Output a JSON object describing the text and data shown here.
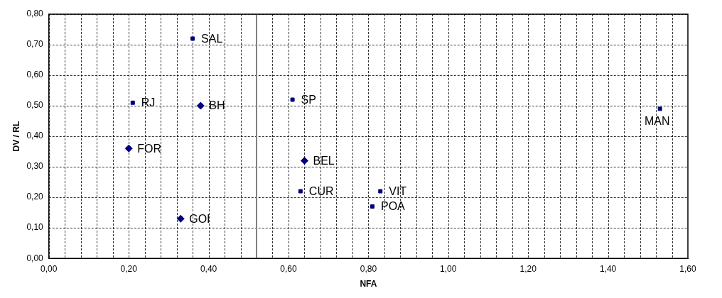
{
  "chart_data": {
    "type": "scatter",
    "xlabel": "NFA",
    "ylabel": "DV / RL",
    "series": [
      {
        "color": "#000080",
        "marker": "diamond",
        "x": [
          0.38,
          0.2,
          0.33,
          0.64
        ],
        "values": [
          0.5,
          0.36,
          0.13,
          0.32
        ]
      },
      {
        "color": "#000080",
        "marker": "square",
        "x": [
          0.36,
          0.21,
          0.61,
          0.63,
          0.81,
          0.83,
          1.53
        ],
        "values": [
          0.72,
          0.51,
          0.52,
          0.22,
          0.17,
          0.22,
          0.49
        ]
      }
    ],
    "annotations": [
      {
        "text": "SAL",
        "x": 0.36,
        "y": 0.72
      },
      {
        "text": "RJ",
        "x": 0.21,
        "y": 0.51
      },
      {
        "text": "BH",
        "x": 0.38,
        "y": 0.5
      },
      {
        "text": "SP",
        "x": 0.61,
        "y": 0.52
      },
      {
        "text": "FOR",
        "x": 0.2,
        "y": 0.36
      },
      {
        "text": "BEL",
        "x": 0.64,
        "y": 0.32
      },
      {
        "text": "CUR",
        "x": 0.63,
        "y": 0.22
      },
      {
        "text": "VIT",
        "x": 0.83,
        "y": 0.22
      },
      {
        "text": "POA",
        "x": 0.81,
        "y": 0.17
      },
      {
        "text": "GOI",
        "x": 0.33,
        "y": 0.13
      },
      {
        "text": "MAN",
        "x": 1.53,
        "y": 0.49
      }
    ],
    "ref_lines": [
      {
        "axis": "x",
        "value": 0.52,
        "color": "#808080"
      }
    ],
    "xlim": [
      0,
      1.6
    ],
    "xticks": [
      {
        "value": 0,
        "label": "0,00"
      },
      {
        "value": 0.2,
        "label": "0,20"
      },
      {
        "value": 0.4,
        "label": "0,40"
      },
      {
        "value": 0.6,
        "label": "0,60"
      },
      {
        "value": 0.8,
        "label": "0,80"
      },
      {
        "value": 1,
        "label": "1,00"
      },
      {
        "value": 1.2,
        "label": "1,20"
      },
      {
        "value": 1.4,
        "label": "1,40"
      },
      {
        "value": 1.6,
        "label": "1,60"
      }
    ],
    "ylim": [
      0,
      0.8
    ],
    "yticks": [
      {
        "value": 0,
        "label": "0,00"
      },
      {
        "value": 0.1,
        "label": "0,10"
      },
      {
        "value": 0.2,
        "label": "0,20"
      },
      {
        "value": 0.3,
        "label": "0,30"
      },
      {
        "value": 0.4,
        "label": "0,40"
      },
      {
        "value": 0.5,
        "label": "0,50"
      },
      {
        "value": 0.6,
        "label": "0,60"
      },
      {
        "value": 0.7,
        "label": "0,70"
      },
      {
        "value": 0.8,
        "label": "0,80"
      }
    ],
    "grid": true
  }
}
